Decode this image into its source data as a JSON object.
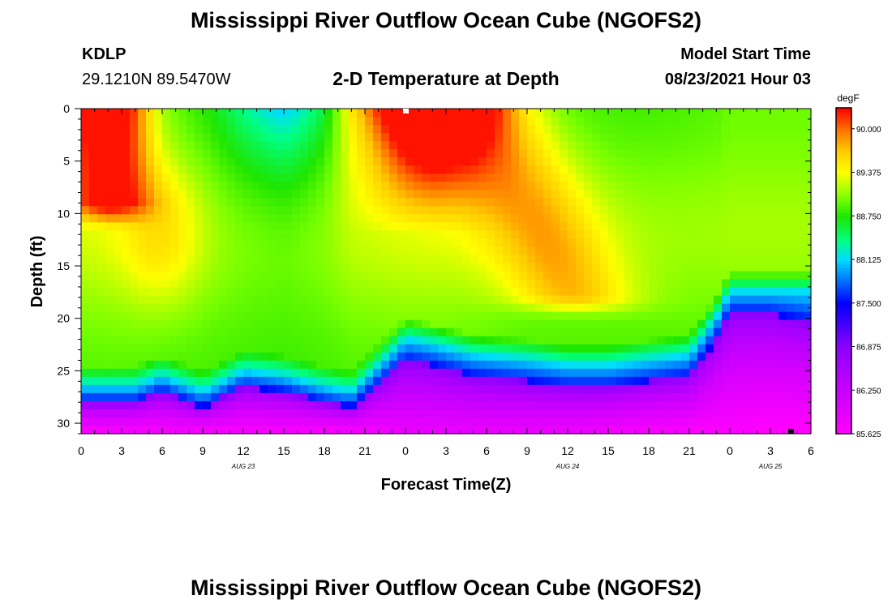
{
  "header": {
    "main_title": "Mississippi River Outflow Ocean Cube (NGOFS2)",
    "station": "KDLP",
    "location": "29.1210N  89.5470W",
    "plot_title": "2-D Temperature at Depth",
    "model_label": "Model Start Time",
    "model_time": "08/23/2021 Hour 03"
  },
  "footer": {
    "title": "Mississippi River Outflow Ocean Cube (NGOFS2)"
  },
  "chart_data": {
    "type": "heatmap",
    "title": "2-D Temperature at Depth",
    "xlabel": "Forecast Time(Z)",
    "ylabel": "Depth (ft)",
    "xlim": [
      0,
      54
    ],
    "ylim": [
      31,
      0
    ],
    "x_ticks": [
      0,
      3,
      6,
      9,
      12,
      15,
      18,
      21,
      24,
      27,
      30,
      33,
      36,
      39,
      42,
      45,
      48,
      51,
      54
    ],
    "x_tick_labels": [
      "0",
      "3",
      "6",
      "9",
      "12",
      "15",
      "18",
      "21",
      "0",
      "3",
      "6",
      "9",
      "12",
      "15",
      "18",
      "21",
      "0",
      "3",
      "6"
    ],
    "date_labels": [
      {
        "x": 12,
        "label": "AUG 23"
      },
      {
        "x": 36,
        "label": "AUG 24"
      },
      {
        "x": 51,
        "label": "AUG 25"
      }
    ],
    "y_ticks": [
      0,
      5,
      10,
      15,
      20,
      25,
      30
    ],
    "y_tick_labels": [
      "0",
      "5",
      "10",
      "15",
      "20",
      "25",
      "30"
    ],
    "colorbar": {
      "unit": "degF",
      "min": 85.625,
      "max": 90.3,
      "ticks": [
        "90.000",
        "89.375",
        "88.750",
        "88.125",
        "87.500",
        "86.875",
        "86.250",
        "85.625"
      ],
      "tick_values": [
        90.0,
        89.375,
        88.75,
        88.125,
        87.5,
        86.875,
        86.25,
        85.625
      ]
    },
    "field_description": "temperature (degF) by forecast hour and depth; warm surface cores near hours 2 and 26, cold bottom layer below about 24-28 ft",
    "profile_times": [
      0,
      2,
      4,
      6,
      9,
      12,
      15,
      18,
      20,
      24,
      26,
      29,
      33,
      36,
      39,
      42,
      45,
      47,
      48,
      51,
      54
    ],
    "isotherm_88125_depth": [
      26.5,
      26.5,
      26.5,
      25.5,
      27.0,
      25.0,
      25.5,
      26.5,
      27.0,
      22.0,
      22.5,
      23.5,
      24.0,
      24.5,
      24.5,
      24.0,
      23.5,
      20.0,
      17.5,
      17.5,
      17.5
    ],
    "isotherm_87500_depth": [
      28.0,
      28.0,
      28.0,
      27.0,
      28.5,
      26.5,
      27.0,
      28.0,
      28.5,
      24.0,
      24.5,
      25.5,
      26.0,
      26.5,
      26.5,
      26.0,
      25.5,
      22.0,
      19.5,
      19.5,
      20.5
    ],
    "bottom_temp": [
      85.7,
      85.7,
      85.7,
      85.75,
      85.7,
      85.75,
      85.75,
      85.7,
      85.7,
      85.9,
      85.9,
      85.9,
      85.9,
      85.85,
      85.8,
      85.75,
      85.7,
      85.7,
      85.7,
      85.65,
      85.65
    ],
    "surface_temp": [
      89.9,
      90.0,
      89.6,
      88.9,
      88.75,
      88.4,
      88.25,
      88.8,
      89.7,
      90.1,
      90.15,
      89.8,
      88.9,
      88.8,
      88.8,
      88.8,
      88.85,
      88.9,
      89.0,
      89.0,
      89.0
    ],
    "markers": [
      {
        "x": 24,
        "depth": 0,
        "color": "#ffffff"
      },
      {
        "x": 52.5,
        "depth": 31,
        "color": "#000000"
      }
    ]
  }
}
